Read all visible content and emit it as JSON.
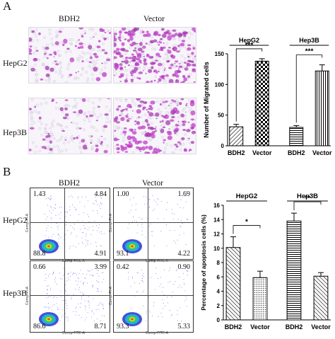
{
  "panelA": {
    "letter": "A",
    "columns": [
      "BDH2",
      "Vector"
    ],
    "rows": [
      "HepG2",
      "Hep3B"
    ]
  },
  "panelB": {
    "letter": "B",
    "columns": [
      "BDH2",
      "Vector"
    ],
    "rows": [
      "HepG2",
      "Hep3B"
    ],
    "flow_axes": {
      "x": "Comp-FITC-A",
      "y": "Comp-PI-A"
    },
    "quadrants": [
      {
        "cell": "HepG2",
        "group": "BDH2",
        "ul": "1.43",
        "ur": "4.84",
        "ll": "88.8",
        "lr": "4.91"
      },
      {
        "cell": "HepG2",
        "group": "Vector",
        "ul": "1.00",
        "ur": "1.69",
        "ll": "93.1",
        "lr": "4.22"
      },
      {
        "cell": "Hep3B",
        "group": "BDH2",
        "ul": "0.66",
        "ur": "3.99",
        "ll": "86.6",
        "lr": "8.71"
      },
      {
        "cell": "Hep3B",
        "group": "Vector",
        "ul": "0.42",
        "ur": "0.90",
        "ll": "93.3",
        "lr": "5.33"
      }
    ]
  },
  "chart_data": [
    {
      "type": "bar",
      "ylabel": "Number of Migrated cells",
      "ylim": [
        0,
        150
      ],
      "yticks": [
        "0",
        "50",
        "100",
        "150"
      ],
      "groups": [
        "HepG2",
        "Hep3B"
      ],
      "categories": [
        "BDH2",
        "Vector",
        "BDH2",
        "Vector"
      ],
      "values": [
        31,
        138,
        30,
        122
      ],
      "errors": [
        4,
        4,
        3,
        10
      ],
      "significance": [
        "***",
        "***"
      ]
    },
    {
      "type": "bar",
      "ylabel": "Percentage of apoptosis cells (%)",
      "ylim": [
        0,
        16
      ],
      "yticks": [
        "0",
        "2",
        "4",
        "6",
        "8",
        "10",
        "12",
        "14",
        "16"
      ],
      "groups": [
        "HepG2",
        "Hep3B"
      ],
      "categories": [
        "BDH2",
        "Vector",
        "BDH2",
        "Vector"
      ],
      "values": [
        10.1,
        5.9,
        13.8,
        6.1
      ],
      "errors": [
        1.5,
        0.9,
        1.1,
        0.5
      ],
      "significance": [
        "*",
        "**"
      ]
    }
  ]
}
